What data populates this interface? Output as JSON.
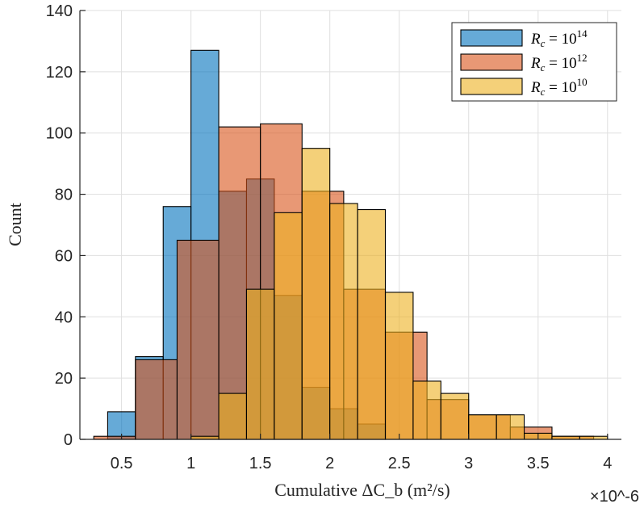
{
  "chart_data": {
    "type": "histogram",
    "xlabel": "Cumulative ΔC_b (m²/s)",
    "ylabel": "Count",
    "x_scale_label": "×10^-6",
    "xlim": [
      0.2,
      4.1
    ],
    "ylim": [
      0,
      140
    ],
    "x_ticks": [
      0.5,
      1,
      1.5,
      2,
      2.5,
      3,
      3.5,
      4
    ],
    "x_tick_labels": [
      "0.5",
      "1",
      "1.5",
      "2",
      "2.5",
      "3",
      "3.5",
      "4"
    ],
    "y_ticks": [
      0,
      20,
      40,
      60,
      80,
      100,
      120,
      140
    ],
    "y_tick_labels": [
      "0",
      "20",
      "40",
      "60",
      "80",
      "100",
      "120",
      "140"
    ],
    "grid": true,
    "legend_position": "top-right",
    "series": [
      {
        "name": "R_c = 10^14",
        "legend_label": "R",
        "legend_sub": "c",
        "legend_mid": " = 10",
        "legend_sup": "14",
        "color": "#0072BD",
        "bins": [
          {
            "x0": 0.4,
            "x1": 0.6,
            "count": 9
          },
          {
            "x0": 0.6,
            "x1": 0.8,
            "count": 27
          },
          {
            "x0": 0.8,
            "x1": 1.0,
            "count": 76
          },
          {
            "x0": 1.0,
            "x1": 1.2,
            "count": 127
          },
          {
            "x0": 1.2,
            "x1": 1.4,
            "count": 81
          },
          {
            "x0": 1.4,
            "x1": 1.6,
            "count": 85
          },
          {
            "x0": 1.6,
            "x1": 1.8,
            "count": 47
          },
          {
            "x0": 1.8,
            "x1": 2.0,
            "count": 17
          },
          {
            "x0": 2.0,
            "x1": 2.2,
            "count": 10
          },
          {
            "x0": 2.2,
            "x1": 2.4,
            "count": 5
          }
        ]
      },
      {
        "name": "R_c = 10^12",
        "legend_label": "R",
        "legend_sub": "c",
        "legend_mid": " = 10",
        "legend_sup": "12",
        "color": "#D95319",
        "bins": [
          {
            "x0": 0.3,
            "x1": 0.6,
            "count": 1
          },
          {
            "x0": 0.6,
            "x1": 0.9,
            "count": 26
          },
          {
            "x0": 0.9,
            "x1": 1.2,
            "count": 65
          },
          {
            "x0": 1.2,
            "x1": 1.5,
            "count": 102
          },
          {
            "x0": 1.5,
            "x1": 1.8,
            "count": 103
          },
          {
            "x0": 1.8,
            "x1": 2.1,
            "count": 81
          },
          {
            "x0": 2.1,
            "x1": 2.4,
            "count": 49
          },
          {
            "x0": 2.4,
            "x1": 2.7,
            "count": 35
          },
          {
            "x0": 2.7,
            "x1": 3.0,
            "count": 13
          },
          {
            "x0": 3.0,
            "x1": 3.3,
            "count": 8
          },
          {
            "x0": 3.3,
            "x1": 3.6,
            "count": 4
          },
          {
            "x0": 3.6,
            "x1": 3.9,
            "count": 1
          }
        ]
      },
      {
        "name": "R_c = 10^10",
        "legend_label": "R",
        "legend_sub": "c",
        "legend_mid": " = 10",
        "legend_sup": "10",
        "color": "#EDB120",
        "bins": [
          {
            "x0": 1.0,
            "x1": 1.2,
            "count": 1
          },
          {
            "x0": 1.2,
            "x1": 1.4,
            "count": 15
          },
          {
            "x0": 1.4,
            "x1": 1.6,
            "count": 49
          },
          {
            "x0": 1.6,
            "x1": 1.8,
            "count": 74
          },
          {
            "x0": 1.8,
            "x1": 2.0,
            "count": 95
          },
          {
            "x0": 2.0,
            "x1": 2.2,
            "count": 77
          },
          {
            "x0": 2.2,
            "x1": 2.4,
            "count": 75
          },
          {
            "x0": 2.4,
            "x1": 2.6,
            "count": 48
          },
          {
            "x0": 2.6,
            "x1": 2.8,
            "count": 19
          },
          {
            "x0": 2.8,
            "x1": 3.0,
            "count": 15
          },
          {
            "x0": 3.0,
            "x1": 3.2,
            "count": 8
          },
          {
            "x0": 3.2,
            "x1": 3.4,
            "count": 8
          },
          {
            "x0": 3.4,
            "x1": 3.6,
            "count": 2
          },
          {
            "x0": 3.6,
            "x1": 3.8,
            "count": 1
          },
          {
            "x0": 3.8,
            "x1": 4.0,
            "count": 1
          }
        ]
      }
    ]
  }
}
